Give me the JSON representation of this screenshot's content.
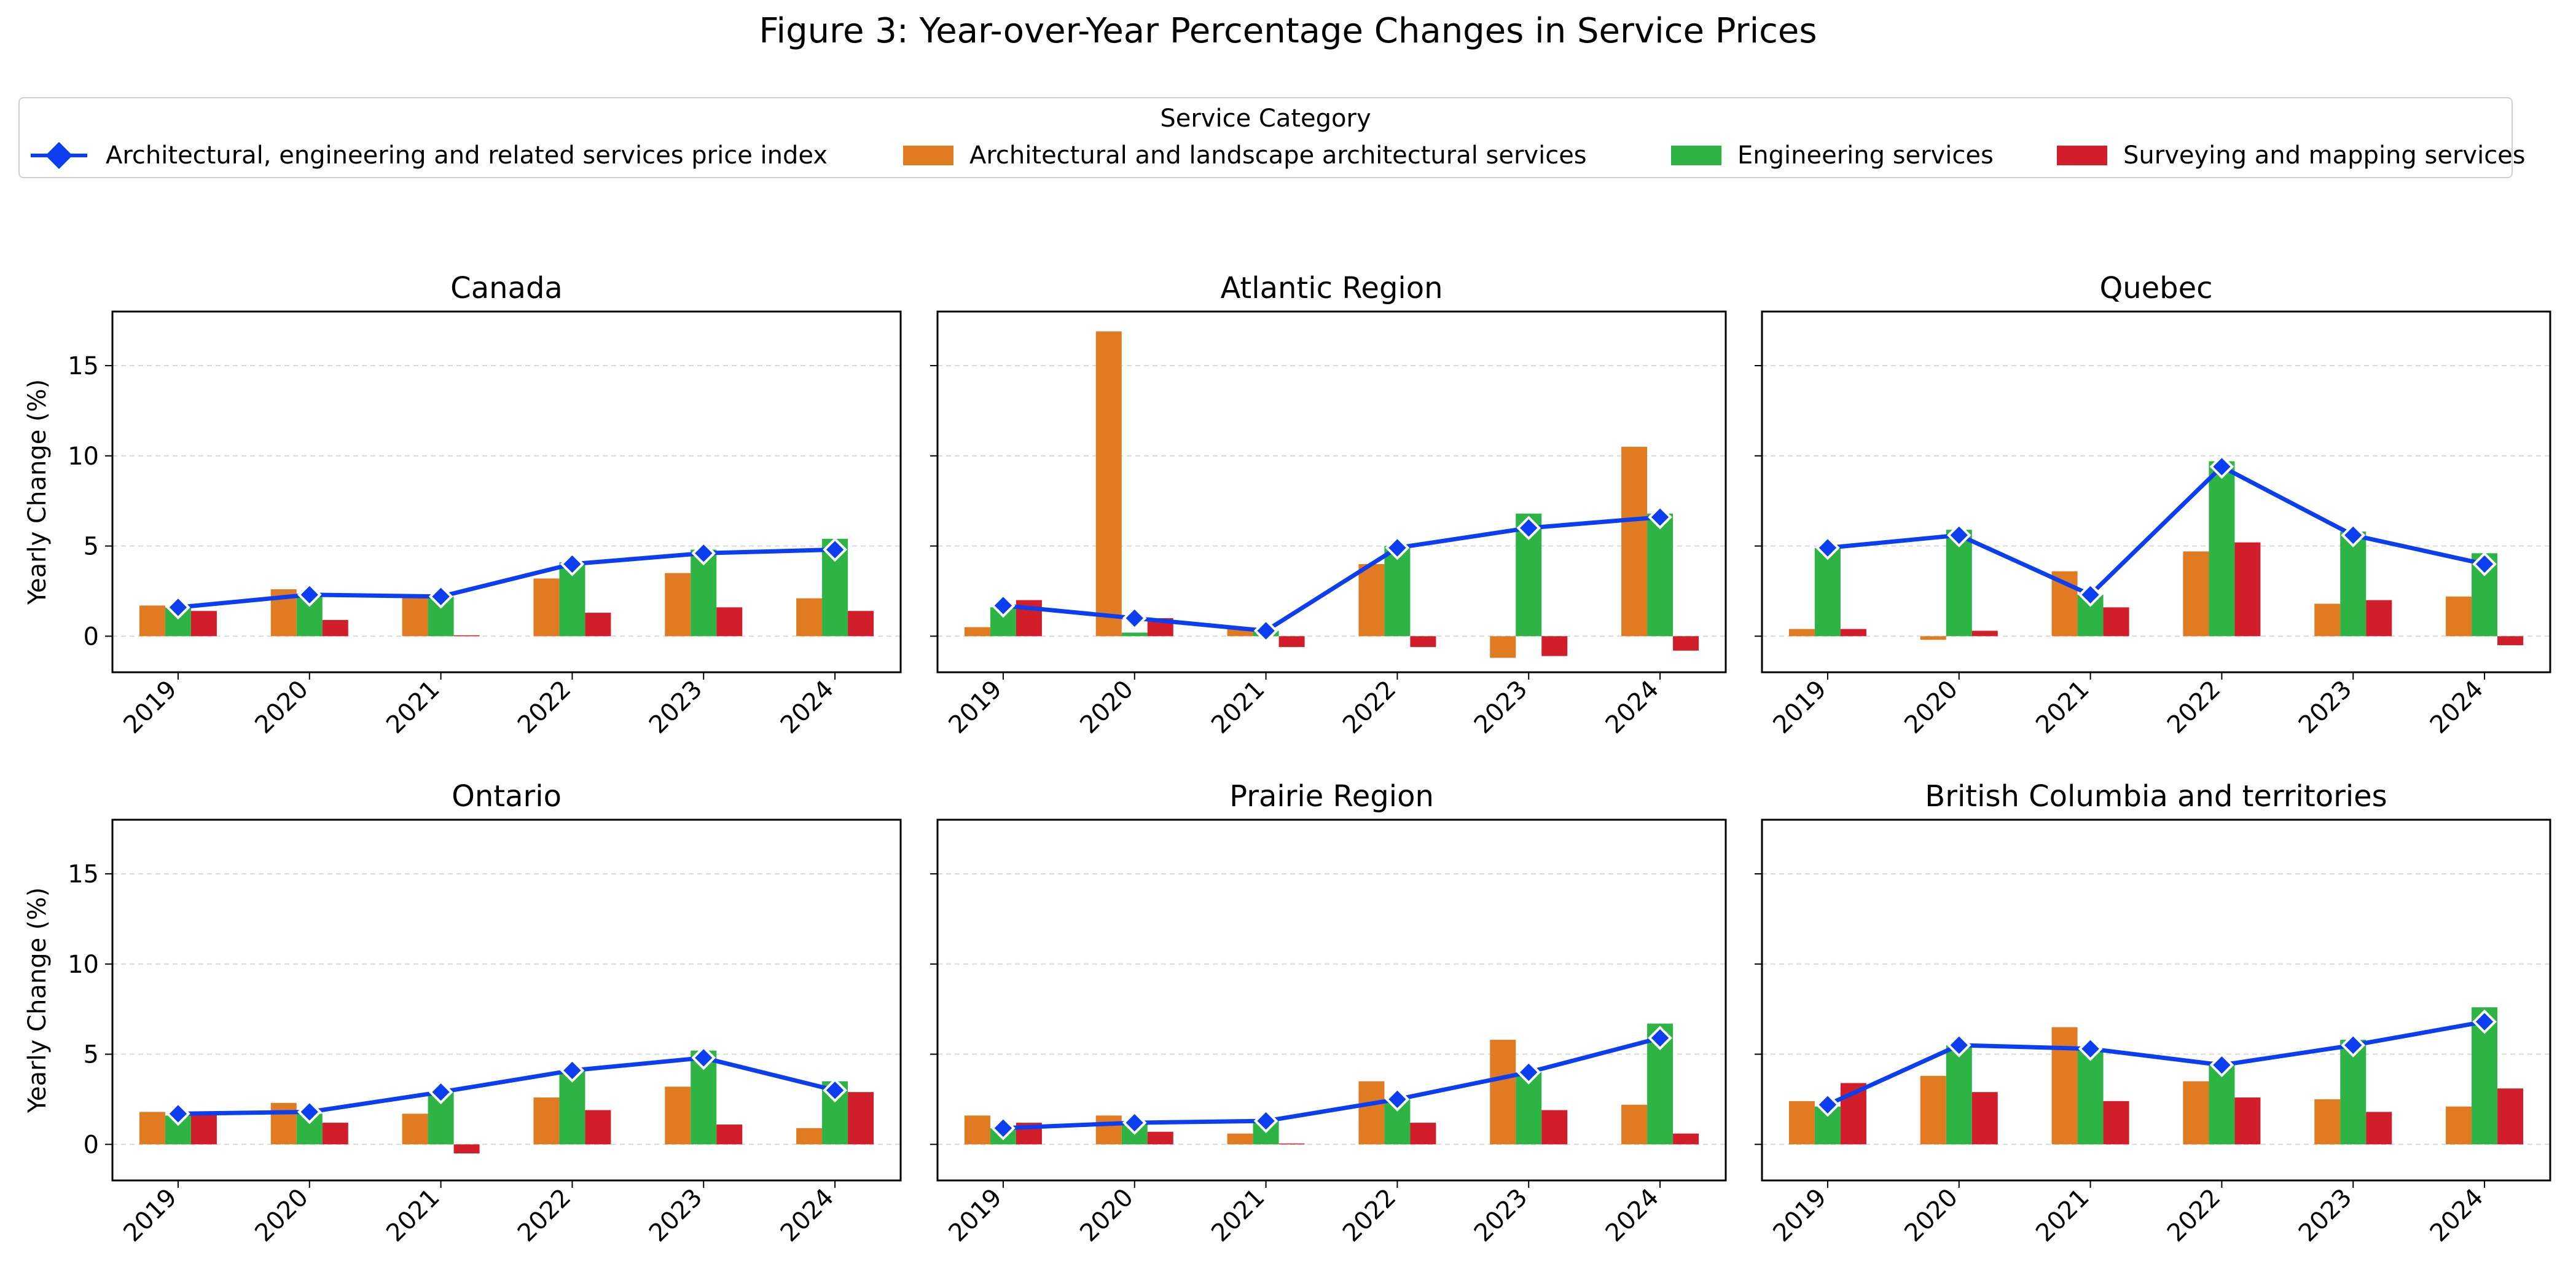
{
  "figure_title": "Figure 3: Year-over-Year Percentage Changes in Service Prices",
  "legend": {
    "title": "Service Category",
    "entries": [
      {
        "label": "Architectural, engineering and related services price index",
        "kind": "line",
        "color": "#0b3ef0"
      },
      {
        "label": "Architectural and landscape architectural services",
        "kind": "bar",
        "color": "#e07b22"
      },
      {
        "label": "Engineering services",
        "kind": "bar",
        "color": "#2db444"
      },
      {
        "label": "Surveying and mapping services",
        "kind": "bar",
        "color": "#d21e2a"
      }
    ]
  },
  "colors": {
    "index_line": "#0b3ef0",
    "architectural": "#e07b22",
    "engineering": "#2db444",
    "surveying": "#d21e2a"
  },
  "chart_data": [
    {
      "type": "bar",
      "title": "Canada",
      "xlabel": "",
      "ylabel": "Yearly Change (%)",
      "categories": [
        "2019",
        "2020",
        "2021",
        "2022",
        "2023",
        "2024"
      ],
      "ylim": [
        -2,
        18
      ],
      "yticks": [
        0,
        5,
        10,
        15
      ],
      "grid": "y-dashed",
      "legend": "top (figure-level)",
      "series": [
        {
          "name": "Architectural, engineering and related services price index",
          "type": "line",
          "values": [
            1.6,
            2.3,
            2.2,
            4.0,
            4.6,
            4.8
          ]
        },
        {
          "name": "Architectural and landscape architectural services",
          "type": "bar",
          "values": [
            1.7,
            2.6,
            2.2,
            3.2,
            3.5,
            2.1
          ]
        },
        {
          "name": "Engineering services",
          "type": "bar",
          "values": [
            1.6,
            2.3,
            2.2,
            4.1,
            4.8,
            5.4
          ]
        },
        {
          "name": "Surveying and mapping services",
          "type": "bar",
          "values": [
            1.4,
            0.9,
            0.05,
            1.3,
            1.6,
            1.4
          ]
        }
      ]
    },
    {
      "type": "bar",
      "title": "Atlantic Region",
      "xlabel": "",
      "ylabel": "",
      "categories": [
        "2019",
        "2020",
        "2021",
        "2022",
        "2023",
        "2024"
      ],
      "ylim": [
        -2,
        18
      ],
      "yticks": [
        0,
        5,
        10,
        15
      ],
      "grid": "y-dashed",
      "series": [
        {
          "name": "Architectural, engineering and related services price index",
          "type": "line",
          "values": [
            1.7,
            1.0,
            0.3,
            4.9,
            6.0,
            6.6
          ]
        },
        {
          "name": "Architectural and landscape architectural services",
          "type": "bar",
          "values": [
            0.5,
            16.9,
            0.4,
            4.0,
            -1.2,
            10.5
          ]
        },
        {
          "name": "Engineering services",
          "type": "bar",
          "values": [
            1.6,
            0.2,
            0.3,
            5.0,
            6.8,
            6.8
          ]
        },
        {
          "name": "Surveying and mapping services",
          "type": "bar",
          "values": [
            2.0,
            1.0,
            -0.6,
            -0.6,
            -1.1,
            -0.8
          ]
        }
      ]
    },
    {
      "type": "bar",
      "title": "Quebec",
      "xlabel": "",
      "ylabel": "",
      "categories": [
        "2019",
        "2020",
        "2021",
        "2022",
        "2023",
        "2024"
      ],
      "ylim": [
        -2,
        18
      ],
      "yticks": [
        0,
        5,
        10,
        15
      ],
      "grid": "y-dashed",
      "series": [
        {
          "name": "Architectural, engineering and related services price index",
          "type": "line",
          "values": [
            4.9,
            5.6,
            2.3,
            9.4,
            5.6,
            4.0
          ]
        },
        {
          "name": "Architectural and landscape architectural services",
          "type": "bar",
          "values": [
            0.4,
            -0.2,
            3.6,
            4.7,
            1.8,
            2.2
          ]
        },
        {
          "name": "Engineering services",
          "type": "bar",
          "values": [
            4.9,
            5.9,
            2.3,
            9.7,
            5.8,
            4.6
          ]
        },
        {
          "name": "Surveying and mapping services",
          "type": "bar",
          "values": [
            0.4,
            0.3,
            1.6,
            5.2,
            2.0,
            -0.5
          ]
        }
      ]
    },
    {
      "type": "bar",
      "title": "Ontario",
      "xlabel": "",
      "ylabel": "Yearly Change (%)",
      "categories": [
        "2019",
        "2020",
        "2021",
        "2022",
        "2023",
        "2024"
      ],
      "ylim": [
        -2,
        18
      ],
      "yticks": [
        0,
        5,
        10,
        15
      ],
      "grid": "y-dashed",
      "series": [
        {
          "name": "Architectural, engineering and related services price index",
          "type": "line",
          "values": [
            1.7,
            1.8,
            2.9,
            4.1,
            4.8,
            3.0
          ]
        },
        {
          "name": "Architectural and landscape architectural services",
          "type": "bar",
          "values": [
            1.8,
            2.3,
            1.7,
            2.6,
            3.2,
            0.9
          ]
        },
        {
          "name": "Engineering services",
          "type": "bar",
          "values": [
            1.6,
            1.7,
            2.9,
            4.1,
            5.2,
            3.5
          ]
        },
        {
          "name": "Surveying and mapping services",
          "type": "bar",
          "values": [
            1.7,
            1.2,
            -0.5,
            1.9,
            1.1,
            2.9
          ]
        }
      ]
    },
    {
      "type": "bar",
      "title": "Prairie Region",
      "xlabel": "",
      "ylabel": "",
      "categories": [
        "2019",
        "2020",
        "2021",
        "2022",
        "2023",
        "2024"
      ],
      "ylim": [
        -2,
        18
      ],
      "yticks": [
        0,
        5,
        10,
        15
      ],
      "grid": "y-dashed",
      "series": [
        {
          "name": "Architectural, engineering and related services price index",
          "type": "line",
          "values": [
            0.9,
            1.2,
            1.3,
            2.5,
            4.0,
            5.9
          ]
        },
        {
          "name": "Architectural and landscape architectural services",
          "type": "bar",
          "values": [
            1.6,
            1.6,
            0.6,
            3.5,
            5.8,
            2.2
          ]
        },
        {
          "name": "Engineering services",
          "type": "bar",
          "values": [
            0.9,
            1.2,
            1.4,
            2.5,
            4.0,
            6.7
          ]
        },
        {
          "name": "Surveying and mapping services",
          "type": "bar",
          "values": [
            1.2,
            0.7,
            0.05,
            1.2,
            1.9,
            0.6
          ]
        }
      ]
    },
    {
      "type": "bar",
      "title": "British Columbia and territories",
      "xlabel": "",
      "ylabel": "",
      "categories": [
        "2019",
        "2020",
        "2021",
        "2022",
        "2023",
        "2024"
      ],
      "ylim": [
        -2,
        18
      ],
      "yticks": [
        0,
        5,
        10,
        15
      ],
      "grid": "y-dashed",
      "series": [
        {
          "name": "Architectural, engineering and related services price index",
          "type": "line",
          "values": [
            2.2,
            5.5,
            5.3,
            4.4,
            5.5,
            6.8
          ]
        },
        {
          "name": "Architectural and landscape architectural services",
          "type": "bar",
          "values": [
            2.4,
            3.8,
            6.5,
            3.5,
            2.5,
            2.1
          ]
        },
        {
          "name": "Engineering services",
          "type": "bar",
          "values": [
            2.1,
            5.5,
            5.3,
            4.6,
            5.8,
            7.6
          ]
        },
        {
          "name": "Surveying and mapping services",
          "type": "bar",
          "values": [
            3.4,
            2.9,
            2.4,
            2.6,
            1.8,
            3.1
          ]
        }
      ]
    }
  ]
}
